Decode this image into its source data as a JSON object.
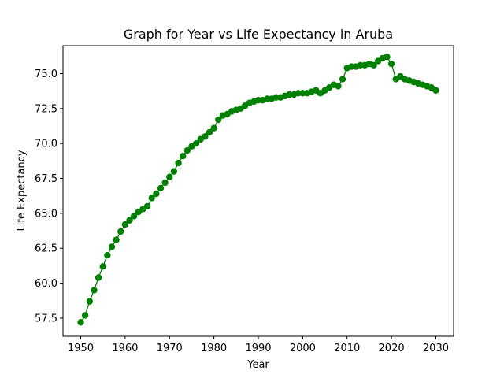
{
  "chart_data": {
    "type": "line",
    "title": "Graph for Year vs Life Expectancy in Aruba",
    "xlabel": "Year",
    "ylabel": "Life Expectancy",
    "xlim": [
      1946,
      2034
    ],
    "ylim": [
      56.2,
      77.0
    ],
    "xticks": [
      1950,
      1960,
      1970,
      1980,
      1990,
      2000,
      2010,
      2020,
      2030
    ],
    "yticks": [
      57.5,
      60.0,
      62.5,
      65.0,
      67.5,
      70.0,
      72.5,
      75.0
    ],
    "ytick_labels": [
      "57.5",
      "60.0",
      "62.5",
      "65.0",
      "67.5",
      "70.0",
      "72.5",
      "75.0"
    ],
    "grid": false,
    "legend": "none",
    "marker": "circle",
    "color": "#008000",
    "series": [
      {
        "x": [
          1950,
          1951,
          1952,
          1953,
          1954,
          1955,
          1956,
          1957,
          1958,
          1959,
          1960,
          1961,
          1962,
          1963,
          1964,
          1965,
          1966,
          1967,
          1968,
          1969,
          1970,
          1971,
          1972,
          1973,
          1974,
          1975,
          1976,
          1977,
          1978,
          1979,
          1980,
          1981,
          1982,
          1983,
          1984,
          1985,
          1986,
          1987,
          1988,
          1989,
          1990,
          1991,
          1992,
          1993,
          1994,
          1995,
          1996,
          1997,
          1998,
          1999,
          2000,
          2001,
          2002,
          2003,
          2004,
          2005,
          2006,
          2007,
          2008,
          2009,
          2010,
          2011,
          2012,
          2013,
          2014,
          2015,
          2016,
          2017,
          2018,
          2019,
          2020,
          2021,
          2022,
          2023,
          2024,
          2025,
          2026,
          2027,
          2028,
          2029,
          2030
        ],
        "values": [
          57.2,
          57.7,
          58.7,
          59.5,
          60.4,
          61.2,
          62.0,
          62.6,
          63.1,
          63.7,
          64.2,
          64.5,
          64.8,
          65.1,
          65.3,
          65.5,
          66.1,
          66.4,
          66.8,
          67.2,
          67.6,
          68.0,
          68.6,
          69.1,
          69.5,
          69.8,
          70.0,
          70.3,
          70.5,
          70.8,
          71.1,
          71.7,
          72.0,
          72.1,
          72.3,
          72.4,
          72.5,
          72.7,
          72.9,
          73.0,
          73.1,
          73.1,
          73.2,
          73.2,
          73.3,
          73.3,
          73.4,
          73.5,
          73.5,
          73.6,
          73.6,
          73.6,
          73.7,
          73.8,
          73.6,
          73.8,
          74.0,
          74.2,
          74.1,
          74.6,
          75.4,
          75.5,
          75.5,
          75.6,
          75.6,
          75.7,
          75.6,
          75.9,
          76.1,
          76.2,
          75.7,
          74.6,
          74.8,
          74.6,
          74.5,
          74.4,
          74.3,
          74.2,
          74.1,
          74.0,
          73.8
        ]
      }
    ]
  }
}
